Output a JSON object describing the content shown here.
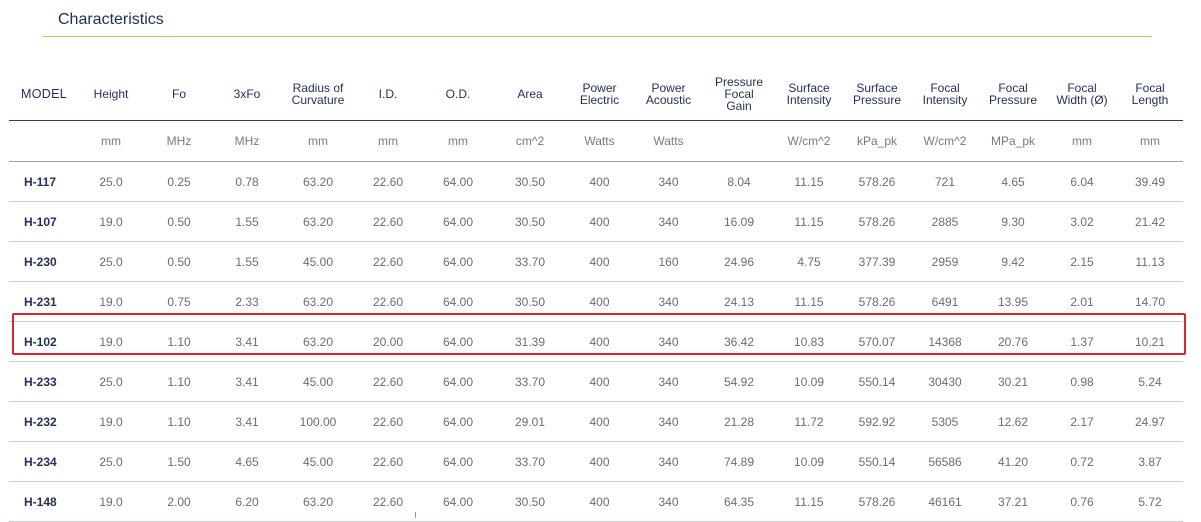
{
  "title": "Characteristics",
  "headers": [
    "MODEL",
    "Height",
    "Fo",
    "3xFo",
    "Radius of\nCurvature",
    "I.D.",
    "O.D.",
    "Area",
    "Power\nElectric",
    "Power\nAcoustic",
    "Pressure\nFocal\nGain",
    "Surface\nIntensity",
    "Surface\nPressure",
    "Focal\nIntensity",
    "Focal\nPressure",
    "Focal\nWidth (Ø)",
    "Focal\nLength"
  ],
  "units": [
    "",
    "mm",
    "MHz",
    "MHz",
    "mm",
    "mm",
    "mm",
    "cm^2",
    "Watts",
    "Watts",
    "",
    "W/cm^2",
    "kPa_pk",
    "W/cm^2",
    "MPa_pk",
    "mm",
    "mm"
  ],
  "rows": [
    [
      "H-117",
      "25.0",
      "0.25",
      "0.78",
      "63.20",
      "22.60",
      "64.00",
      "30.50",
      "400",
      "340",
      "8.04",
      "11.15",
      "578.26",
      "721",
      "4.65",
      "6.04",
      "39.49"
    ],
    [
      "H-107",
      "19.0",
      "0.50",
      "1.55",
      "63.20",
      "22.60",
      "64.00",
      "30.50",
      "400",
      "340",
      "16.09",
      "11.15",
      "578.26",
      "2885",
      "9.30",
      "3.02",
      "21.42"
    ],
    [
      "H-230",
      "25.0",
      "0.50",
      "1.55",
      "45.00",
      "22.60",
      "64.00",
      "33.70",
      "400",
      "160",
      "24.96",
      "4.75",
      "377.39",
      "2959",
      "9.42",
      "2.15",
      "11.13"
    ],
    [
      "H-231",
      "19.0",
      "0.75",
      "2.33",
      "63.20",
      "22.60",
      "64.00",
      "30.50",
      "400",
      "340",
      "24.13",
      "11.15",
      "578.26",
      "6491",
      "13.95",
      "2.01",
      "14.70"
    ],
    [
      "H-102",
      "19.0",
      "1.10",
      "3.41",
      "63.20",
      "20.00",
      "64.00",
      "31.39",
      "400",
      "340",
      "36.42",
      "10.83",
      "570.07",
      "14368",
      "20.76",
      "1.37",
      "10.21"
    ],
    [
      "H-233",
      "25.0",
      "1.10",
      "3.41",
      "45.00",
      "22.60",
      "64.00",
      "33.70",
      "400",
      "340",
      "54.92",
      "10.09",
      "550.14",
      "30430",
      "30.21",
      "0.98",
      "5.24"
    ],
    [
      "H-232",
      "19.0",
      "1.10",
      "3.41",
      "100.00",
      "22.60",
      "64.00",
      "29.01",
      "400",
      "340",
      "21.28",
      "11.72",
      "592.92",
      "5305",
      "12.62",
      "2.17",
      "24.97"
    ],
    [
      "H-234",
      "25.0",
      "1.50",
      "4.65",
      "45.00",
      "22.60",
      "64.00",
      "33.70",
      "400",
      "340",
      "74.89",
      "10.09",
      "550.14",
      "56586",
      "41.20",
      "0.72",
      "3.87"
    ],
    [
      "H-148",
      "19.0",
      "2.00",
      "6.20",
      "63.20",
      "22.60",
      "64.00",
      "30.50",
      "400",
      "340",
      "64.35",
      "11.15",
      "578.26",
      "46161",
      "37.21",
      "0.76",
      "5.72"
    ]
  ],
  "highlighted_model": "H-102",
  "colors": {
    "title": "#1f2f58",
    "rule": "#e3b458",
    "highlight": "#d9262a"
  }
}
